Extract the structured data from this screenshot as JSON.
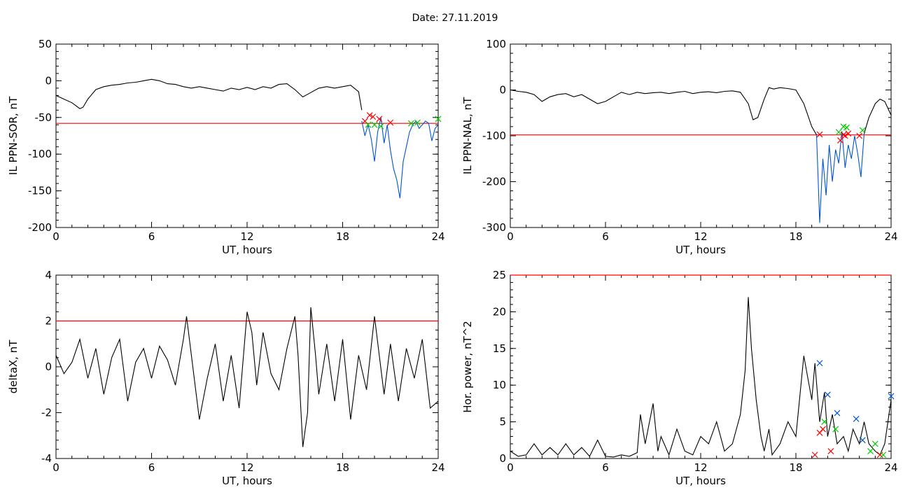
{
  "header": {
    "title": "Date:  27.11.2019"
  },
  "colors": {
    "data": "#000000",
    "threshold": "#ff0000",
    "highlight": "#0055cc",
    "start_marker": "#ff0000",
    "end_marker": "#00cc00",
    "peak_marker": "#0055cc"
  },
  "chart_data": [
    {
      "type": "line",
      "title": "",
      "xlabel": "UT, hours",
      "ylabel": "IL PPN-SOR, nT",
      "xlim": [
        0,
        24
      ],
      "ylim": [
        -200,
        50
      ],
      "xticks": [
        "0",
        "6",
        "12",
        "18",
        "24"
      ],
      "yticks": [
        "50",
        "0",
        "-50",
        "-100",
        "-150",
        "-200"
      ],
      "threshold": -58,
      "series": [
        {
          "x": [
            0,
            0.5,
            1,
            1.5,
            1.7,
            2,
            2.5,
            3,
            3.5,
            4,
            4.5,
            5,
            5.5,
            6,
            6.5,
            7,
            7.5,
            8,
            8.5,
            9,
            9.5,
            10,
            10.5,
            11,
            11.5,
            12,
            12.5,
            13,
            13.5,
            14,
            14.5,
            15,
            15.5,
            16,
            16.5,
            17,
            17.5,
            18,
            18.5,
            19,
            19.2
          ],
          "y": [
            -20,
            -25,
            -30,
            -38,
            -36,
            -25,
            -12,
            -8,
            -6,
            -5,
            -3,
            -2,
            0,
            2,
            0,
            -4,
            -5,
            -8,
            -10,
            -8,
            -10,
            -12,
            -14,
            -10,
            -12,
            -9,
            -12,
            -8,
            -10,
            -5,
            -4,
            -12,
            -22,
            -16,
            -10,
            -8,
            -10,
            -8,
            -6,
            -15,
            -40
          ]
        },
        {
          "x": [
            19.2,
            19.4,
            19.6,
            19.8,
            20,
            20.2,
            20.4,
            20.6,
            20.8,
            21,
            21.2,
            21.4,
            21.6,
            21.8,
            22,
            22.2,
            22.4,
            22.6,
            22.8,
            23,
            23.2,
            23.4,
            23.6,
            23.8,
            24
          ],
          "y": [
            -55,
            -75,
            -60,
            -80,
            -110,
            -70,
            -50,
            -85,
            -60,
            -95,
            -120,
            -135,
            -160,
            -110,
            -90,
            -70,
            -60,
            -55,
            -65,
            -60,
            -55,
            -58,
            -82,
            -65,
            -60
          ]
        }
      ],
      "markers_start": {
        "x": [
          19.4,
          19.7,
          19.9,
          20.3,
          21
        ],
        "y": [
          -55,
          -47,
          -49,
          -52,
          -57
        ]
      },
      "markers_end": {
        "x": [
          19.6,
          20,
          20.4,
          22.3,
          22.7,
          24
        ],
        "y": [
          -60,
          -60,
          -62,
          -58,
          -57,
          -52
        ]
      }
    },
    {
      "type": "line",
      "title": "",
      "xlabel": "UT, hours",
      "ylabel": "IL PPN-NAL, nT",
      "xlim": [
        0,
        24
      ],
      "ylim": [
        -300,
        100
      ],
      "xticks": [
        "0",
        "6",
        "12",
        "18",
        "24"
      ],
      "yticks": [
        "100",
        "0",
        "-100",
        "-200",
        "-300"
      ],
      "threshold": -98,
      "series": [
        {
          "x": [
            0,
            0.5,
            1,
            1.5,
            2,
            2.5,
            3,
            3.5,
            4,
            4.5,
            5,
            5.5,
            6,
            6.5,
            7,
            7.5,
            8,
            8.5,
            9,
            9.5,
            10,
            10.5,
            11,
            11.5,
            12,
            12.5,
            13,
            13.5,
            14,
            14.5,
            15,
            15.3,
            15.6,
            16,
            16.3,
            16.6,
            17,
            17.5,
            18,
            18.5,
            19,
            19.3
          ],
          "y": [
            0,
            -3,
            -5,
            -10,
            -25,
            -15,
            -10,
            -8,
            -15,
            -10,
            -20,
            -30,
            -25,
            -15,
            -5,
            -10,
            -5,
            -8,
            -6,
            -5,
            -8,
            -5,
            -3,
            -8,
            -5,
            -4,
            -6,
            -3,
            -2,
            -5,
            -30,
            -65,
            -60,
            -20,
            5,
            2,
            5,
            3,
            0,
            -30,
            -80,
            -98
          ]
        },
        {
          "x": [
            19.3,
            19.5,
            19.7,
            19.9,
            20.1,
            20.3,
            20.5,
            20.7,
            20.9,
            21.1,
            21.3,
            21.5,
            21.7,
            21.9,
            22.1,
            22.3
          ],
          "y": [
            -98,
            -290,
            -150,
            -230,
            -120,
            -200,
            -130,
            -160,
            -90,
            -170,
            -120,
            -150,
            -100,
            -140,
            -190,
            -95
          ]
        },
        {
          "x": [
            22.3,
            22.6,
            23,
            23.3,
            23.6,
            24
          ],
          "y": [
            -95,
            -60,
            -30,
            -20,
            -25,
            -55
          ]
        }
      ],
      "markers_start": {
        "x": [
          19.5,
          20.8,
          21,
          21.1,
          21.3,
          22
        ],
        "y": [
          -97,
          -110,
          -98,
          -100,
          -95,
          -100
        ]
      },
      "markers_end": {
        "x": [
          20.7,
          21.0,
          21.2,
          22.2
        ],
        "y": [
          -92,
          -80,
          -82,
          -88
        ]
      }
    },
    {
      "type": "line",
      "title": "",
      "xlabel": "UT, hours",
      "ylabel": "deltaX, nT",
      "xlim": [
        0,
        24
      ],
      "ylim": [
        -4,
        4
      ],
      "xticks": [
        "0",
        "6",
        "12",
        "18",
        "24"
      ],
      "yticks": [
        "4",
        "2",
        "0",
        "-2",
        "-4"
      ],
      "threshold": 2,
      "series": [
        {
          "x": [
            0,
            0.5,
            1,
            1.5,
            2,
            2.5,
            3,
            3.5,
            4,
            4.5,
            5,
            5.5,
            6,
            6.5,
            7,
            7.5,
            8,
            8.2,
            8.5,
            9,
            9.5,
            10,
            10.5,
            11,
            11.5,
            12,
            12.3,
            12.6,
            13,
            13.5,
            14,
            14.5,
            15,
            15.2,
            15.5,
            15.8,
            16,
            16.3,
            16.5,
            17,
            17.5,
            18,
            18.5,
            19,
            19.5,
            20,
            20.3,
            20.6,
            21,
            21.5,
            22,
            22.5,
            23,
            23.5,
            24
          ],
          "y": [
            0.5,
            -0.3,
            0.2,
            1.2,
            -0.5,
            0.8,
            -1.2,
            0.4,
            1.2,
            -1.5,
            0.2,
            0.8,
            -0.5,
            0.9,
            0.3,
            -0.8,
            1.2,
            2.2,
            0.5,
            -2.3,
            -0.5,
            1.0,
            -1.5,
            0.5,
            -1.8,
            2.4,
            1.5,
            -0.8,
            1.5,
            -0.3,
            -1.0,
            0.8,
            2.2,
            0.5,
            -3.5,
            -2,
            2.6,
            0.5,
            -1.2,
            1.0,
            -1.5,
            1.2,
            -2.3,
            0.5,
            -1.0,
            2.2,
            0.5,
            -1.2,
            1.0,
            -1.5,
            0.8,
            -0.5,
            1.2,
            -1.8,
            -1.5
          ]
        }
      ]
    },
    {
      "type": "line",
      "title": "",
      "xlabel": "UT, hours",
      "ylabel": "Hor. power, nT^2",
      "xlim": [
        0,
        24
      ],
      "ylim": [
        0,
        25
      ],
      "xticks": [
        "0",
        "6",
        "12",
        "18",
        "24"
      ],
      "yticks": [
        "25",
        "20",
        "15",
        "10",
        "5",
        "0"
      ],
      "threshold": 25,
      "series": [
        {
          "x": [
            0,
            0.5,
            1,
            1.5,
            2,
            2.5,
            3,
            3.5,
            4,
            4.5,
            5,
            5.5,
            6,
            6.5,
            7,
            7.5,
            8,
            8.2,
            8.5,
            9,
            9.3,
            9.5,
            10,
            10.5,
            11,
            11.5,
            12,
            12.5,
            13,
            13.5,
            14,
            14.5,
            14.8,
            15,
            15.2,
            15.5,
            15.8,
            16,
            16.3,
            16.5,
            17,
            17.5,
            18,
            18.5,
            19,
            19.2,
            19.5,
            19.8,
            20,
            20.3,
            20.6,
            21,
            21.3,
            21.6,
            22,
            22.3,
            22.6,
            23,
            23.3,
            23.6,
            24
          ],
          "y": [
            1,
            0.3,
            0.5,
            2,
            0.5,
            1.5,
            0.5,
            2,
            0.5,
            1.5,
            0.3,
            2.5,
            0.3,
            0.2,
            0.5,
            0.3,
            0.8,
            6,
            2,
            7.5,
            1,
            3,
            0.5,
            4,
            1,
            0.5,
            3,
            2,
            5,
            1,
            2,
            6,
            12,
            22,
            15,
            8,
            3,
            1,
            4,
            0.5,
            2,
            5,
            3,
            14,
            8,
            13,
            5,
            9,
            3,
            6,
            2,
            3,
            1,
            4,
            2,
            5,
            2,
            1,
            0.5,
            2,
            8
          ]
        }
      ],
      "markers_start": {
        "x": [
          19.2,
          19.5,
          19.7,
          20.2,
          23.3
        ],
        "y": [
          0.5,
          3.5,
          4,
          1,
          0.5
        ]
      },
      "markers_end": {
        "x": [
          19.8,
          20.5,
          22.7,
          23.0,
          23.5
        ],
        "y": [
          5,
          4,
          1,
          2,
          0.5
        ]
      },
      "markers_peak": {
        "x": [
          19.5,
          20.0,
          20.6,
          21.8,
          22.2,
          24
        ],
        "y": [
          13,
          8.7,
          6.2,
          5.4,
          2.5,
          8.5
        ]
      }
    }
  ]
}
